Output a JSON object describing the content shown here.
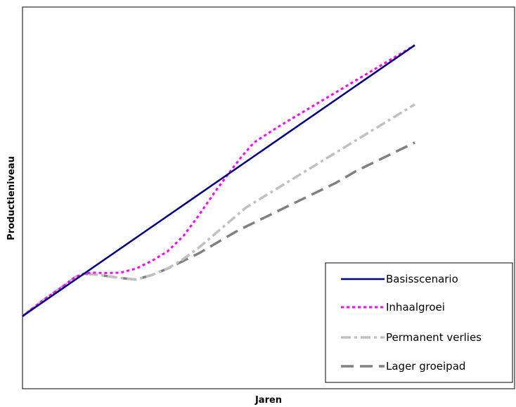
{
  "chart_data": {
    "type": "line",
    "title": "",
    "xlabel": "Jaren",
    "ylabel": "Productieniveau",
    "xlim": [
      0,
      100
    ],
    "ylim": [
      0,
      100
    ],
    "grid": false,
    "legend_position": "bottom-right",
    "series": [
      {
        "name": "Basisscenario",
        "color": "#000080",
        "dash": "solid",
        "x": [
          0,
          100
        ],
        "y": [
          19,
          90
        ]
      },
      {
        "name": "Inhaalgroei",
        "color": "#FF00FF",
        "dash": "dotted",
        "x": [
          0,
          5,
          10,
          13.5,
          16,
          18,
          21,
          25,
          29,
          33,
          37,
          41,
          45,
          49,
          53,
          56,
          59,
          62,
          65,
          100
        ],
        "y": [
          19,
          23,
          26.6,
          29.3,
          30.3,
          30.4,
          30.3,
          30.4,
          31.5,
          33.5,
          36,
          40,
          45.5,
          51.5,
          57,
          61,
          64.5,
          66.5,
          68.5,
          90
        ]
      },
      {
        "name": "Permanent verlies",
        "color": "#C0C0C0",
        "dash": "dashdot",
        "x": [
          0,
          5,
          10,
          13.5,
          16,
          18,
          21,
          25,
          29,
          33,
          37,
          41,
          45,
          49,
          53,
          57,
          100
        ],
        "y": [
          19,
          23,
          26.6,
          29.3,
          30.1,
          30,
          29.6,
          29,
          28.6,
          29.8,
          31.5,
          34,
          37,
          40.5,
          44,
          47.5,
          74.5
        ]
      },
      {
        "name": "Lager groeipad",
        "color": "#808080",
        "dash": "longdash",
        "x": [
          0,
          5,
          10,
          13.5,
          16,
          18,
          21,
          25,
          29,
          33,
          37,
          41,
          45,
          50,
          55,
          60,
          65,
          70,
          75,
          80,
          85,
          90,
          95,
          100
        ],
        "y": [
          19,
          23,
          26.6,
          29.3,
          30.1,
          30,
          29.6,
          29,
          28.6,
          29.8,
          31.5,
          33.5,
          35.5,
          38.5,
          41.5,
          44,
          46.5,
          49,
          51.5,
          54,
          57,
          59.5,
          62,
          64.5
        ]
      }
    ]
  }
}
